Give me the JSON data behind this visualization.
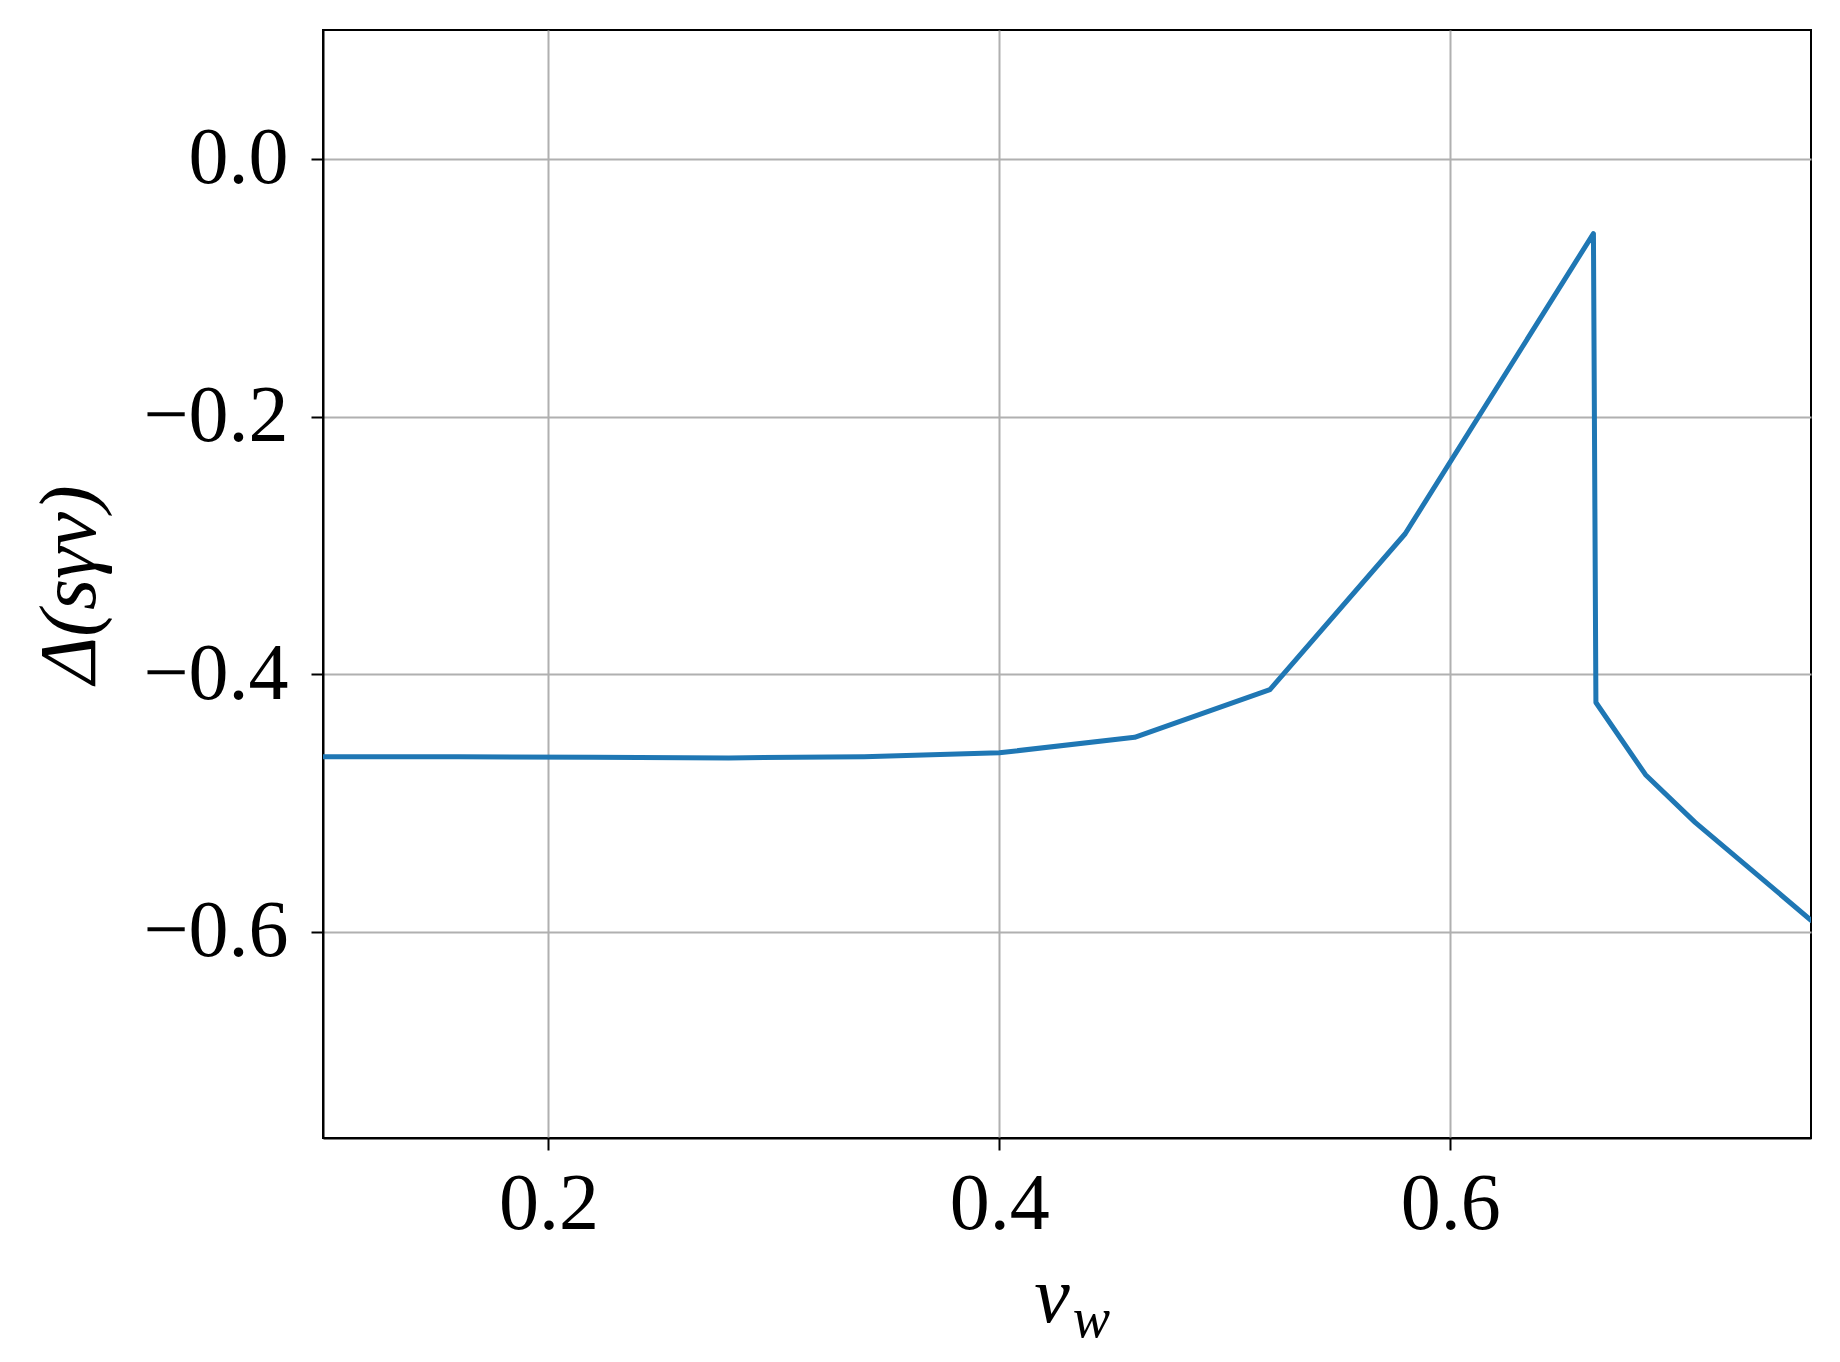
{
  "chart_data": {
    "type": "line",
    "xlabel": "v$_{w}$",
    "ylabel": "Δ(sγv)",
    "x": [
      0.1,
      0.16,
      0.22,
      0.28,
      0.34,
      0.4,
      0.46,
      0.52,
      0.58,
      0.6635,
      0.6646,
      0.6866,
      0.7086,
      0.76
    ],
    "series": [
      {
        "color": "#1f77b4",
        "values": [
          -0.464,
          -0.464,
          -0.4645,
          -0.465,
          -0.464,
          -0.461,
          -0.449,
          -0.412,
          -0.291,
          -0.058,
          -0.422,
          -0.478,
          -0.515,
          -0.591
        ]
      }
    ],
    "xlim": [
      0.1,
      0.76
    ],
    "ylim": [
      -0.76,
      0.1
    ],
    "xticks": [
      0.2,
      0.4,
      0.6
    ],
    "yticks": [
      {
        "value": 0,
        "label": "0.0"
      },
      {
        "value": -0.2,
        "label": "−0.2"
      },
      {
        "value": -0.4,
        "label": "−0.4"
      },
      {
        "value": -0.6,
        "label": "−0.6"
      }
    ],
    "grid": true,
    "line_style": "solid"
  }
}
